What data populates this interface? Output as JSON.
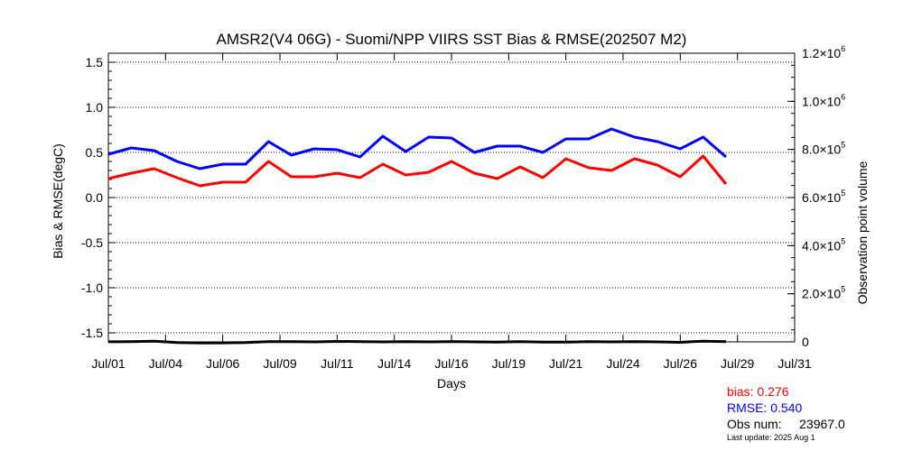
{
  "chart_data": {
    "type": "line",
    "title": "AMSR2(V4 06G) - Suomi/NPP VIIRS SST Bias & RMSE(202507 M2)",
    "xlabel": "Days",
    "ylabel_left": "Bias & RMSE(degC)",
    "ylabel_right": "Observation point volume",
    "xlim": [
      1,
      31
    ],
    "ylim_left": [
      -1.6,
      1.6
    ],
    "ylim_right": [
      0,
      1200000
    ],
    "x_ticks": [
      1,
      3.5,
      6,
      8.5,
      11,
      13.5,
      16,
      18.5,
      21,
      23.5,
      26,
      28.5,
      31
    ],
    "x_tick_labels": [
      "Jul/01",
      "Jul/04",
      "Jul/06",
      "Jul/09",
      "Jul/11",
      "Jul/14",
      "Jul/16",
      "Jul/19",
      "Jul/21",
      "Jul/24",
      "Jul/26",
      "Jul/29",
      "Jul/31"
    ],
    "y_ticks_left": [
      -1.5,
      -1.0,
      -0.5,
      0.0,
      0.5,
      1.0,
      1.5
    ],
    "y_tick_labels_left": [
      "-1.5",
      "-1.0",
      "-0.5",
      "0.0",
      "0.5",
      "1.0",
      "1.5"
    ],
    "y_ticks_right": [
      0,
      200000,
      400000,
      600000,
      800000,
      1000000,
      1200000
    ],
    "y_tick_labels_right": [
      {
        "mantissa": "0",
        "exponent": ""
      },
      {
        "mantissa": "2.0×10",
        "exponent": "5"
      },
      {
        "mantissa": "4.0×10",
        "exponent": "5"
      },
      {
        "mantissa": "6.0×10",
        "exponent": "5"
      },
      {
        "mantissa": "8.0×10",
        "exponent": "5"
      },
      {
        "mantissa": "1.0×10",
        "exponent": "6"
      },
      {
        "mantissa": "1.2×10",
        "exponent": "6"
      }
    ],
    "grid": "horizontal-dotted",
    "x": [
      1,
      2,
      3,
      4,
      5,
      6,
      7,
      8,
      9,
      10,
      11,
      12,
      13,
      14,
      15,
      16,
      17,
      18,
      19,
      20,
      21,
      22,
      23,
      24,
      25,
      26,
      27,
      28
    ],
    "series": [
      {
        "axis": "left",
        "color": "#ff0000",
        "values": [
          0.21,
          0.27,
          0.32,
          0.22,
          0.13,
          0.17,
          0.17,
          0.4,
          0.23,
          0.23,
          0.27,
          0.22,
          0.37,
          0.25,
          0.28,
          0.4,
          0.27,
          0.21,
          0.34,
          0.22,
          0.43,
          0.33,
          0.3,
          0.43,
          0.36,
          0.23,
          0.46,
          0.15
        ]
      },
      {
        "axis": "left",
        "color": "#0000ff",
        "values": [
          0.48,
          0.55,
          0.52,
          0.4,
          0.32,
          0.37,
          0.37,
          0.62,
          0.47,
          0.54,
          0.53,
          0.45,
          0.68,
          0.51,
          0.67,
          0.66,
          0.5,
          0.57,
          0.57,
          0.5,
          0.65,
          0.65,
          0.76,
          0.67,
          0.62,
          0.54,
          0.67,
          0.45
        ]
      },
      {
        "axis": "right",
        "color": "#000000",
        "values": [
          500,
          1000,
          3000,
          -3000,
          -5000,
          -4000,
          -3000,
          1000,
          1000,
          0,
          2000,
          1000,
          0,
          1000,
          0,
          1000,
          0,
          -1000,
          1000,
          -1000,
          -1000,
          1000,
          0,
          1000,
          0,
          -2000,
          3000,
          1000
        ]
      }
    ]
  },
  "stats": {
    "bias": "bias: 0.276",
    "rmse": "RMSE: 0.540",
    "obs": "Obs num:     23967.0",
    "last_update": "Last update: 2025 Aug  1"
  },
  "colors": {
    "bias": "#ff0000",
    "rmse": "#0000ff",
    "obs": "#000000",
    "axis": "#000000"
  }
}
